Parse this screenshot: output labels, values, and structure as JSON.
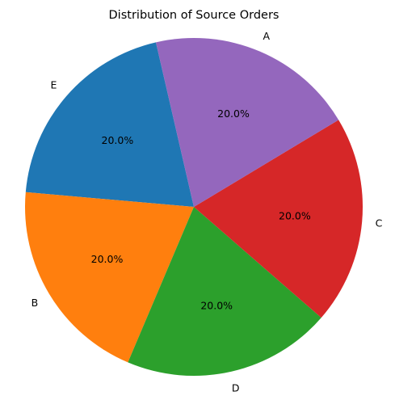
{
  "chart_data": {
    "type": "pie",
    "title": "Distribution of Source Orders",
    "start_angle_deg": 103,
    "direction": "counterclockwise",
    "slices": [
      {
        "label": "E",
        "value": 20,
        "pct_label": "20.0%",
        "color": "#1f77b4"
      },
      {
        "label": "B",
        "value": 20,
        "pct_label": "20.0%",
        "color": "#ff7f0e"
      },
      {
        "label": "D",
        "value": 20,
        "pct_label": "20.0%",
        "color": "#2ca02c"
      },
      {
        "label": "C",
        "value": 20,
        "pct_label": "20.0%",
        "color": "#d62728"
      },
      {
        "label": "A",
        "value": 20,
        "pct_label": "20.0%",
        "color": "#9467bd"
      }
    ]
  }
}
